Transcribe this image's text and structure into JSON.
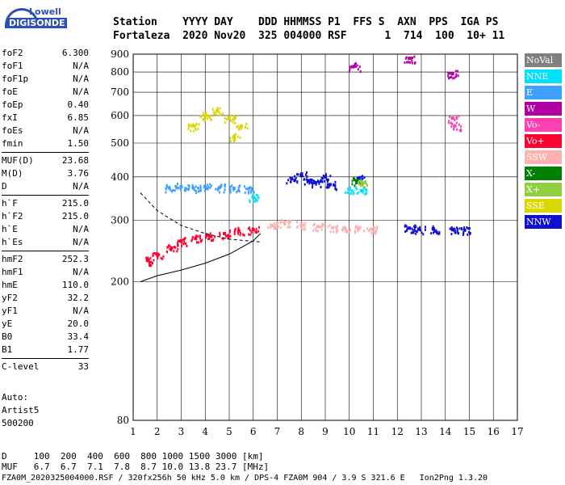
{
  "logo": {
    "top": "Lowell",
    "bottom": "DIGISONDE"
  },
  "header": {
    "row1": "Station    YYYY DAY    DDD HHMMSS P1  FFS S  AXN  PPS  IGA PS",
    "row2": "Fortaleza  2020 Nov20  325 004000 RSF      1  714  100  10+ 11"
  },
  "params": [
    {
      "name": "foF2",
      "value": "6.300"
    },
    {
      "name": "foF1",
      "value": "N/A"
    },
    {
      "name": "foF1p",
      "value": "N/A"
    },
    {
      "name": "foE",
      "value": "N/A"
    },
    {
      "name": "foEp",
      "value": "0.40"
    },
    {
      "name": "fxI",
      "value": "6.85"
    },
    {
      "name": "foEs",
      "value": "N/A"
    },
    {
      "name": "fmin",
      "value": "1.50"
    },
    {
      "name": "MUF(D)",
      "value": "23.68"
    },
    {
      "name": "M(D)",
      "value": "3.76"
    },
    {
      "name": "D",
      "value": "N/A"
    },
    {
      "name": "h`F",
      "value": "215.0"
    },
    {
      "name": "h`F2",
      "value": "215.0"
    },
    {
      "name": "h`E",
      "value": "N/A"
    },
    {
      "name": "h`Es",
      "value": "N/A"
    },
    {
      "name": "hmF2",
      "value": "252.3"
    },
    {
      "name": "hmF1",
      "value": "N/A"
    },
    {
      "name": "hmE",
      "value": "110.0"
    },
    {
      "name": "yF2",
      "value": "32.2"
    },
    {
      "name": "yF1",
      "value": "N/A"
    },
    {
      "name": "yE",
      "value": "20.0"
    },
    {
      "name": "B0",
      "value": "33.4"
    },
    {
      "name": "B1",
      "value": "1.77"
    },
    {
      "name": "C-level",
      "value": "33"
    }
  ],
  "notes": {
    "auto": "Auto:",
    "artist": "Artist5",
    "version": "500200"
  },
  "legend": [
    {
      "label": "NoVal",
      "bg": "#808080",
      "fg": "#ffffff"
    },
    {
      "label": "NNE",
      "bg": "#00e0ff",
      "fg": "#ffffff"
    },
    {
      "label": "E",
      "bg": "#3fa0ff",
      "fg": "#ffffff"
    },
    {
      "label": "W",
      "bg": "#b000a0",
      "fg": "#ffffff"
    },
    {
      "label": "Vo-",
      "bg": "#ff40b0",
      "fg": "#ffffff"
    },
    {
      "label": "Vo+",
      "bg": "#ff0030",
      "fg": "#ffffff"
    },
    {
      "label": "SSW",
      "bg": "#ffb0b0",
      "fg": "#ffffff"
    },
    {
      "label": "X-",
      "bg": "#008000",
      "fg": "#ffffff"
    },
    {
      "label": "X+",
      "bg": "#90d040",
      "fg": "#ffffff"
    },
    {
      "label": "SSE",
      "bg": "#d8d800",
      "fg": "#ffffff"
    },
    {
      "label": "NNW",
      "bg": "#1010d0",
      "fg": "#ffffff"
    }
  ],
  "footer": {
    "line1": "D     100  200  400  600  800 1000 1500 3000 [km]",
    "line2": "MUF   6.7  6.7  7.1  7.8  8.7 10.0 13.8 23.7 [MHz]",
    "line3": "FZA0M_2020325004000.RSF / 320fx256h 50 kHz 5.0 km / DPS-4 FZA0M 904 / 3.9 S 321.6 E   Ion2Png 1.3.20"
  },
  "chart_data": {
    "type": "scatter",
    "title": "",
    "xlabel": "",
    "ylabel": "",
    "xlim": [
      1,
      17
    ],
    "ylim": [
      80,
      900
    ],
    "x_ticks": [
      1,
      2,
      3,
      4,
      5,
      6,
      7,
      8,
      9,
      10,
      11,
      12,
      13,
      14,
      15,
      16,
      17
    ],
    "y_ticks": [
      80,
      200,
      300,
      400,
      500,
      600,
      700,
      800,
      900
    ],
    "y_scale": "log",
    "grid": true,
    "legend_position": "right",
    "series": [
      {
        "name": "NNW",
        "color": "#1010d0",
        "points": [
          [
            7.6,
            395
          ],
          [
            8.0,
            405
          ],
          [
            8.3,
            390
          ],
          [
            8.6,
            385
          ],
          [
            9.0,
            400
          ],
          [
            9.2,
            380
          ],
          [
            10.4,
            395
          ],
          [
            12.5,
            285
          ],
          [
            12.9,
            283
          ],
          [
            13.5,
            284
          ],
          [
            14.3,
            282
          ],
          [
            14.8,
            281
          ]
        ]
      },
      {
        "name": "SSW",
        "color": "#ffb0b0",
        "points": [
          [
            6.8,
            290
          ],
          [
            7.3,
            295
          ],
          [
            8.0,
            292
          ],
          [
            8.7,
            288
          ],
          [
            9.3,
            286
          ],
          [
            9.8,
            285
          ],
          [
            10.4,
            284
          ],
          [
            10.9,
            283
          ]
        ]
      },
      {
        "name": "Vo+",
        "color": "#ff0030",
        "points": [
          [
            1.6,
            230
          ],
          [
            2.0,
            240
          ],
          [
            2.6,
            250
          ],
          [
            3.0,
            262
          ],
          [
            3.6,
            266
          ],
          [
            4.2,
            270
          ],
          [
            4.8,
            275
          ],
          [
            5.4,
            280
          ],
          [
            6.0,
            282
          ]
        ]
      },
      {
        "name": "E",
        "color": "#3fa0ff",
        "points": [
          [
            2.5,
            372
          ],
          [
            3.0,
            375
          ],
          [
            3.5,
            372
          ],
          [
            4.0,
            374
          ],
          [
            4.6,
            373
          ],
          [
            5.2,
            371
          ],
          [
            5.8,
            370
          ]
        ]
      },
      {
        "name": "SSE",
        "color": "#d8d800",
        "points": [
          [
            3.5,
            560
          ],
          [
            4.0,
            600
          ],
          [
            4.5,
            620
          ],
          [
            5.0,
            590
          ],
          [
            5.5,
            560
          ],
          [
            5.2,
            520
          ]
        ]
      },
      {
        "name": "NNE",
        "color": "#00e0ff",
        "points": [
          [
            10.0,
            370
          ],
          [
            10.5,
            365
          ],
          [
            6.0,
            350
          ]
        ]
      },
      {
        "name": "W",
        "color": "#b000a0",
        "points": [
          [
            12.5,
            875
          ],
          [
            10.2,
            830
          ],
          [
            14.3,
            790
          ]
        ]
      },
      {
        "name": "Vo-",
        "color": "#ff40b0",
        "points": [
          [
            14.3,
            590
          ],
          [
            14.4,
            560
          ]
        ]
      },
      {
        "name": "X-",
        "color": "#008000",
        "points": [
          [
            10.3,
            390
          ]
        ]
      },
      {
        "name": "X+",
        "color": "#90d040",
        "points": [
          [
            10.6,
            385
          ]
        ]
      }
    ]
  }
}
